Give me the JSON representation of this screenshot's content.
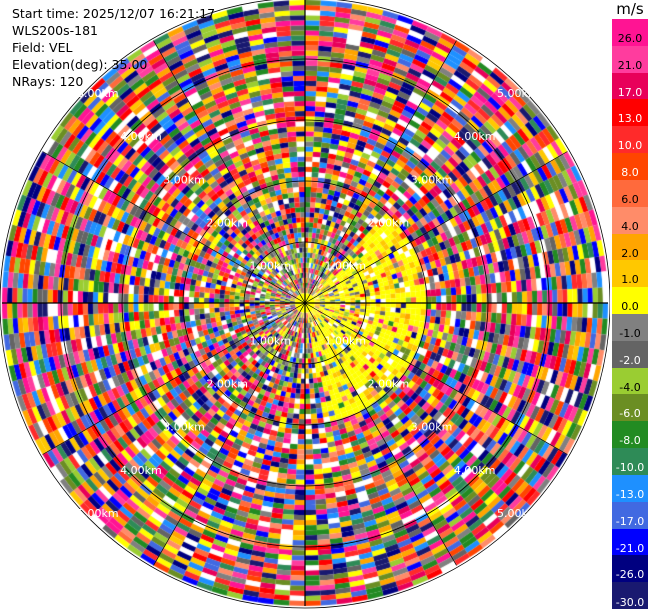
{
  "info": {
    "start_time": "Start time: 2025/12/07 16:21:17",
    "instrument": "WLS200s-181",
    "field": "Field: VEL",
    "elevation": "Elevation(deg): 35.00",
    "nrays": "NRays: 120"
  },
  "colorbar": {
    "unit": "m/s",
    "ticks": [
      "26.0",
      "21.0",
      "17.0",
      "13.0",
      "10.0",
      "8.0",
      "6.0",
      "4.0",
      "2.0",
      "1.0",
      "0.0",
      "-1.0",
      "-2.0",
      "-4.0",
      "-6.0",
      "-8.0",
      "-10.0",
      "-13.0",
      "-17.0",
      "-21.0",
      "-26.0",
      "-30.0"
    ],
    "colors": [
      "#ff1493",
      "#ff3c9e",
      "#e8005a",
      "#ff0000",
      "#ff2a2a",
      "#ff4500",
      "#ff6a3c",
      "#ff8c69",
      "#ffa500",
      "#ffc800",
      "#ffff00",
      "#808080",
      "#646464",
      "#9acd32",
      "#6b8e23",
      "#228b22",
      "#2e8b57",
      "#1e90ff",
      "#4169e1",
      "#0000ff",
      "#000080",
      "#191970"
    ]
  },
  "chart_data": {
    "type": "heatmap",
    "subtype": "polar PPI scan",
    "field": "VEL",
    "unit": "m/s",
    "nrays": 120,
    "elevation_deg": 35.0,
    "range_ring_labels": [
      "1.00km",
      "2.00km",
      "3.00km",
      "4.00km",
      "5.00km"
    ],
    "colorbar_range": [
      -30.0,
      26.0
    ],
    "note_values": "per-gate velocities too dense to read individually; near field dominated by yellow (~2 to 4 m/s) in the east sector"
  }
}
